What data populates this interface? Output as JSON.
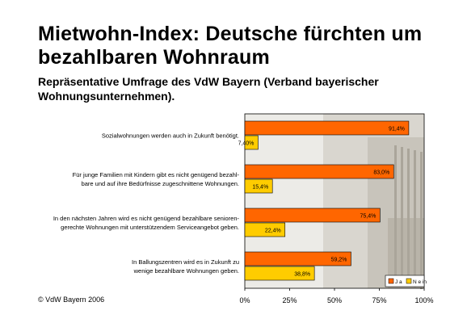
{
  "title": "Mietwohn-Index: Deutsche fürchten um bezahlbaren Wohnraum",
  "subtitle": "Repräsentative Umfrage des VdW Bayern (Verband bayerischer Wohnungsunternehmen).",
  "copyright": "© VdW Bayern 2006",
  "colors": {
    "ja": "#ff6600",
    "nein": "#ffcc00",
    "background_photo": "#d9d6cf"
  },
  "chart_data": {
    "type": "bar",
    "orientation": "horizontal",
    "categories": [
      [
        "Sozialwohnungen werden auch in Zukunft benötigt."
      ],
      [
        "Für junge Familien mit Kindern gibt es nicht genügend bezahl-",
        "bare und auf ihre Bedürfnisse zugeschnittene Wohnungen."
      ],
      [
        "In den nächsten Jahren wird es nicht genügend bezahlbare senioren-",
        "gerechte Wohnungen mit unterstützendem Serviceangebot geben."
      ],
      [
        "In Ballungszentren wird es in Zukunft zu",
        "wenige bezahlbare Wohnungen geben."
      ]
    ],
    "series": [
      {
        "name": "J a",
        "color": "#ff6600",
        "values": [
          91.4,
          83.0,
          75.4,
          59.2
        ],
        "labels": [
          "91,4%",
          "83,0%",
          "75,4%",
          "59,2%"
        ]
      },
      {
        "name": "N e in",
        "color": "#ffcc00",
        "values": [
          7.4,
          15.4,
          22.4,
          38.8
        ],
        "labels": [
          "7,40%",
          "15,4%",
          "22,4%",
          "38,8%"
        ]
      }
    ],
    "xlim": [
      0,
      100
    ],
    "xticks": [
      "0%",
      "25%",
      "50%",
      "75%",
      "100%"
    ],
    "legend_position": "bottom-right"
  }
}
